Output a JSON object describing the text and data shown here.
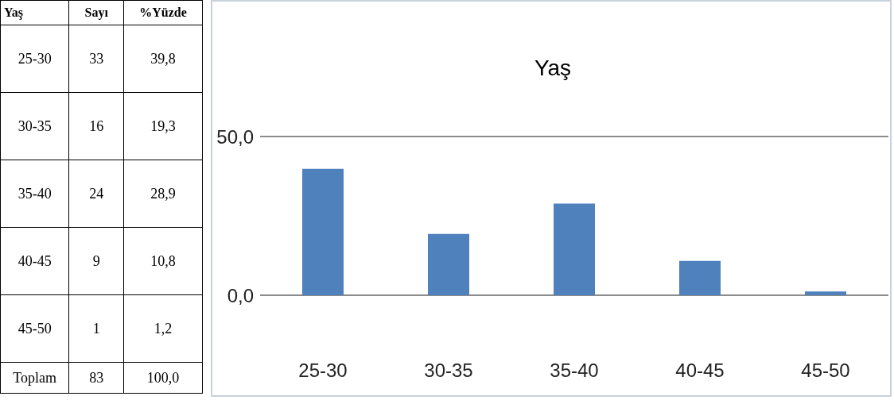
{
  "chart_data": {
    "type": "bar",
    "title": "Yaş",
    "categories": [
      "25-30",
      "30-35",
      "35-40",
      "40-45",
      "45-50"
    ],
    "values": [
      39.8,
      19.3,
      28.9,
      10.8,
      1.2
    ],
    "color": "#4f81bd",
    "ylim": [
      0,
      50
    ],
    "yticks": [
      {
        "value": 0,
        "label": "0,0"
      },
      {
        "value": 50,
        "label": "50,0"
      }
    ],
    "grid": "y",
    "annotations": [
      "Yaş",
      "Sayı",
      "%Yüzde",
      "33",
      "39,8",
      "16",
      "19,3",
      "24",
      "28,9",
      "9",
      "10,8",
      "1",
      "1,2",
      "Toplam",
      "83",
      "100,0"
    ]
  }
}
